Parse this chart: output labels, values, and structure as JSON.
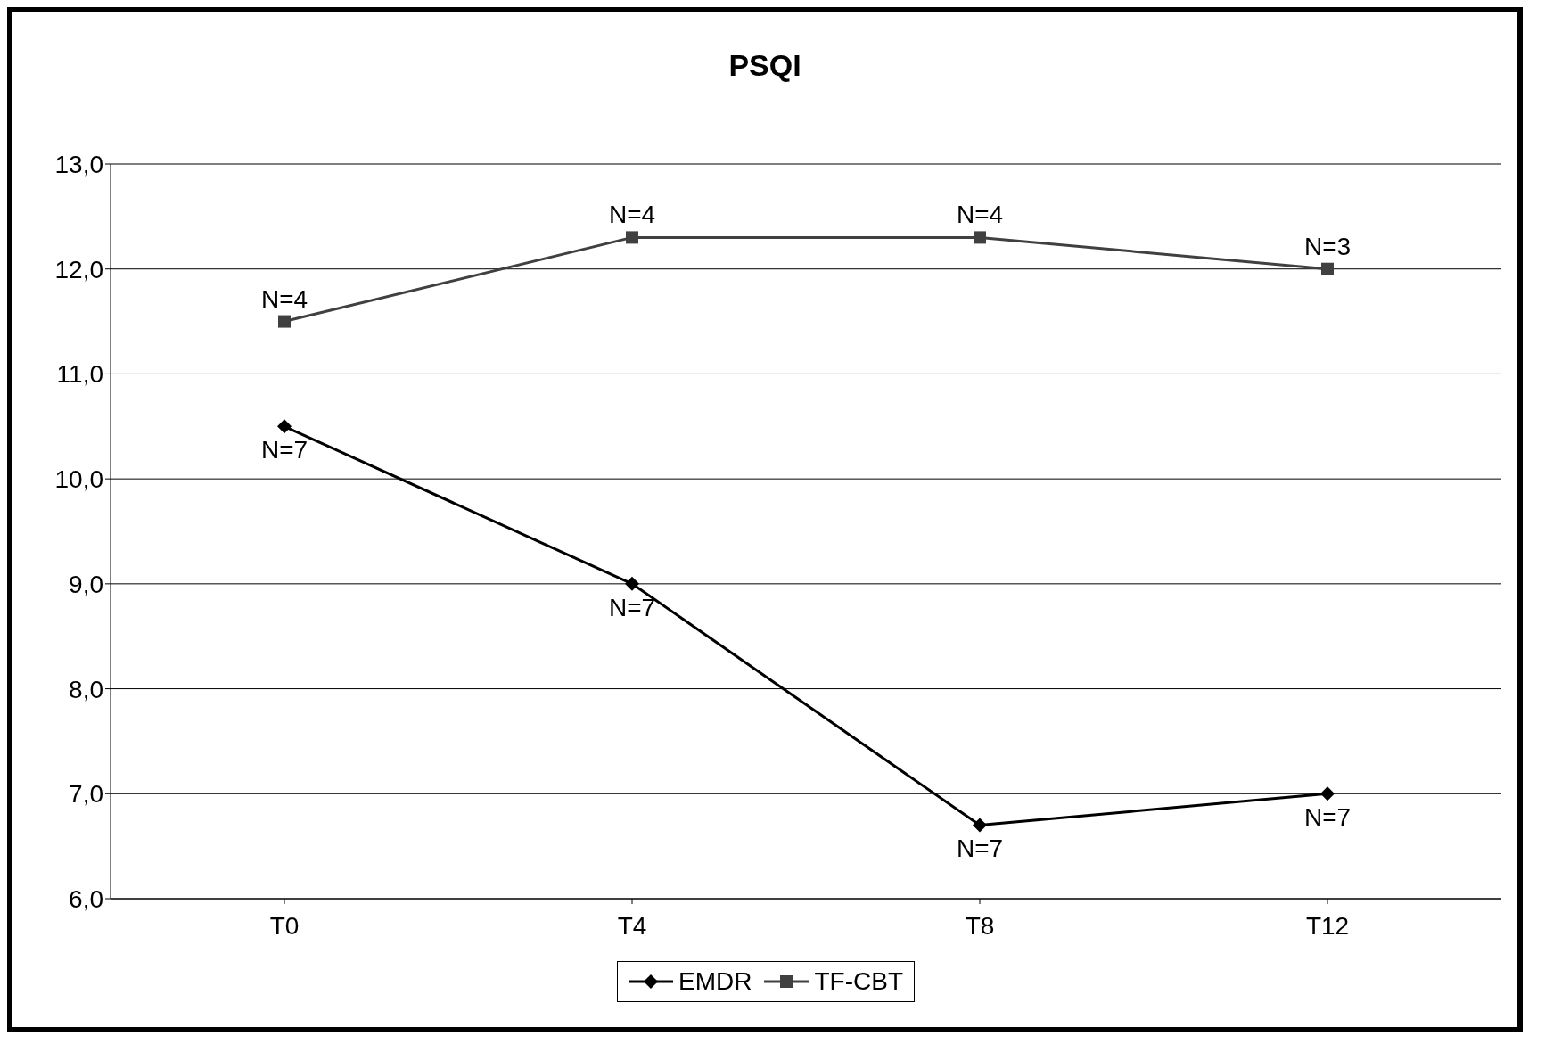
{
  "chart_data": {
    "type": "line",
    "title": "PSQI",
    "categories": [
      "T0",
      "T4",
      "T8",
      "T12"
    ],
    "series": [
      {
        "name": "EMDR",
        "color": "#000000",
        "marker": "diamond",
        "values": [
          10.5,
          9.0,
          6.7,
          7.0
        ]
      },
      {
        "name": "TF-CBT",
        "color": "#404040",
        "marker": "square",
        "values": [
          11.5,
          12.3,
          12.3,
          12.0
        ]
      }
    ],
    "ylim": [
      6,
      13
    ],
    "yticks": [
      {
        "value": 6,
        "label": "6,0"
      },
      {
        "value": 7,
        "label": "7,0"
      },
      {
        "value": 8,
        "label": "8,0"
      },
      {
        "value": 9,
        "label": "9,0"
      },
      {
        "value": 10,
        "label": "10,0"
      },
      {
        "value": 11,
        "label": "11,0"
      },
      {
        "value": 12,
        "label": "12,0"
      },
      {
        "value": 13,
        "label": "13,0"
      }
    ],
    "grid": "y",
    "legend": "bottom",
    "line_style": "solid",
    "annotations": [
      {
        "text": "N=4",
        "x": "T0",
        "y": 11.5
      },
      {
        "text": "N=4",
        "x": "T4",
        "y": 12.3
      },
      {
        "text": "N=4",
        "x": "T8",
        "y": 12.3
      },
      {
        "text": "N=3",
        "x": "T12",
        "y": 12.0
      },
      {
        "text": "N=7",
        "x": "T0",
        "y": 10.5
      },
      {
        "text": "N=7",
        "x": "T4",
        "y": 9.0
      },
      {
        "text": "N=7",
        "x": "T8",
        "y": 6.7
      },
      {
        "text": "N=7",
        "x": "T12",
        "y": 7.0
      }
    ]
  }
}
